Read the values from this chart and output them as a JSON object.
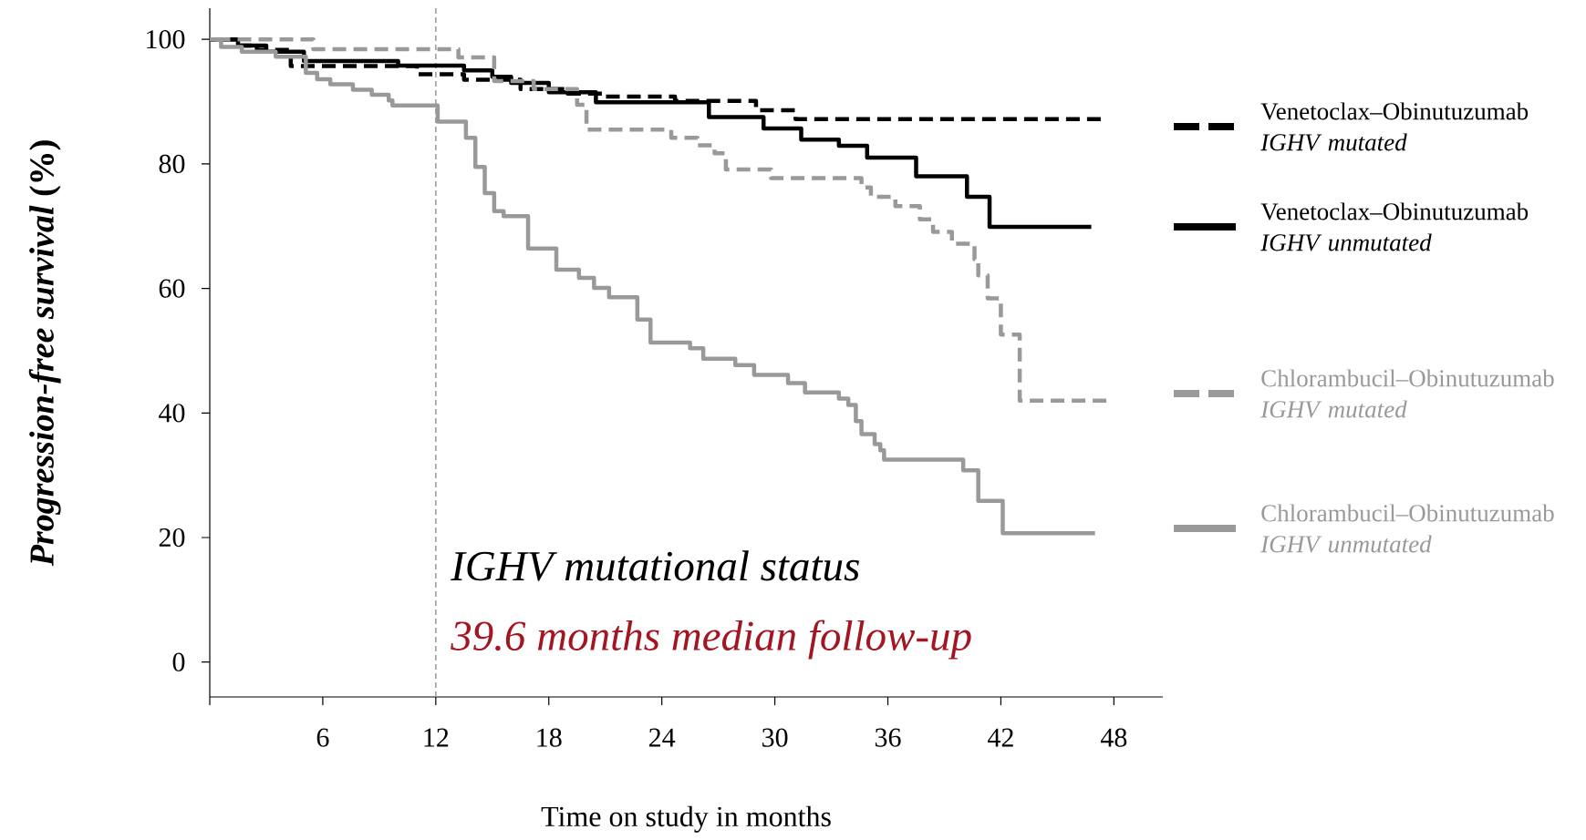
{
  "chart_data": {
    "type": "step",
    "xlabel": "Time on study in months",
    "ylabel": "*Progression-free survival* (%)",
    "xlim": [
      0,
      50.6
    ],
    "ylim": [
      -5.6,
      105
    ],
    "xticks": [
      {
        "value": 0,
        "label": null
      },
      6,
      12,
      18,
      24,
      30,
      36,
      42,
      48
    ],
    "yticks": [
      0,
      20,
      40,
      60,
      80,
      100
    ],
    "legend": "right",
    "ref_lines": [
      {
        "axis": "x",
        "value": 12,
        "color": "#999999",
        "line_style": "dashed"
      }
    ],
    "annotations": [
      "*IGHV mutational status*",
      "*39.6 months median follow-up*"
    ],
    "series": [
      {
        "name": "Venetoclax–Obinutuzumab *IGHV mutated*",
        "color": "#000000",
        "line_style": "dashed",
        "x": [
          0,
          1.5,
          2.5,
          4.3,
          11,
          13.5,
          16.5,
          19,
          21,
          24.7,
          29,
          31.1,
          47.3
        ],
        "values": [
          100,
          99,
          98.3,
          95.7,
          94.4,
          93.5,
          92,
          91.3,
          90.8,
          90.1,
          88.6,
          87.2,
          87.2
        ]
      },
      {
        "name": "Venetoclax–Obinutuzumab *IGHV unmutated*",
        "color": "#000000",
        "line_style": "solid",
        "x": [
          0,
          1.5,
          3,
          5,
          10,
          13.5,
          15,
          16,
          18,
          20.5,
          26.5,
          29.4,
          31.4,
          33.4,
          34.9,
          37.5,
          40.2,
          41.4,
          46.8
        ],
        "values": [
          100,
          99,
          98,
          96.5,
          95.8,
          95,
          94,
          93,
          91.5,
          89.9,
          87.5,
          85.7,
          83.9,
          82.9,
          81,
          78,
          74.7,
          69.9,
          69.9
        ]
      },
      {
        "name": "Chlorambucil–Obinutuzumab *IGHV mutated*",
        "color": "#999999",
        "line_style": "dashed",
        "x": [
          0,
          5.5,
          13.2,
          15.1,
          17.2,
          19.5,
          20,
          20.6,
          24.5,
          25.9,
          26.8,
          27.4,
          29.8,
          34.6,
          35.1,
          36.4,
          37.7,
          38.4,
          39.4,
          40.6,
          40.8,
          41.3,
          42,
          43,
          47.6
        ],
        "values": [
          100,
          98.4,
          97.1,
          93.3,
          92,
          89.5,
          85.5,
          85.5,
          84.2,
          83,
          81.7,
          79.1,
          77.7,
          76.2,
          74.7,
          73.2,
          71.1,
          69.1,
          67.2,
          64.7,
          62.1,
          58.4,
          52.6,
          42,
          42
        ]
      },
      {
        "name": "Chlorambucil–Obinutuzumab *IGHV unmutated*",
        "color": "#999999",
        "line_style": "solid",
        "x": [
          0,
          0.6,
          1.7,
          3.5,
          5.1,
          5.7,
          6.4,
          7.6,
          8.6,
          9.5,
          9.7,
          12.1,
          13.6,
          14.1,
          14.6,
          15.1,
          15.6,
          16.9,
          18.4,
          19.6,
          20.4,
          21.2,
          22.7,
          23.4,
          25.5,
          26.2,
          27.9,
          28.9,
          30.7,
          31.6,
          33.4,
          33.9,
          34.3,
          34.6,
          35.3,
          35.6,
          35.8,
          36.3,
          40,
          40.8,
          42.1,
          47
        ],
        "values": [
          100,
          98.8,
          98,
          97.2,
          94.6,
          93.6,
          92.8,
          91.9,
          91.1,
          90.2,
          89.4,
          86.8,
          84.2,
          79.5,
          75.3,
          72.4,
          71.6,
          66.4,
          63,
          61.7,
          60.1,
          58.6,
          55,
          51.3,
          50.4,
          48.7,
          47.7,
          46.1,
          44.8,
          43.3,
          42.3,
          41.3,
          38.7,
          36.6,
          35,
          34,
          32.5,
          32.5,
          30.8,
          25.9,
          20.7,
          20.7
        ]
      }
    ]
  }
}
